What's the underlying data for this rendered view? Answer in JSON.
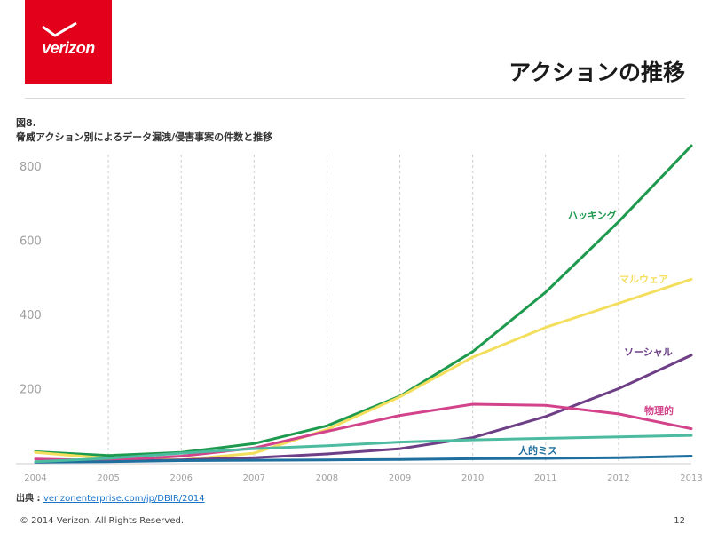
{
  "header": {
    "brand_colors": {
      "logo_bg": "#e2001a",
      "logo_text": "#ffffff"
    },
    "logo_text": "verizon",
    "slide_title": "アクションの推移"
  },
  "figure": {
    "number": "図8.",
    "title": "脅威アクション別によるデータ漏洩/侵害事案の件数と推移"
  },
  "chart_data": {
    "type": "line",
    "x": [
      2004,
      2005,
      2006,
      2007,
      2008,
      2009,
      2010,
      2011,
      2012,
      2013
    ],
    "x_tick_labels": [
      "2004",
      "2005",
      "2006",
      "2007",
      "2008",
      "2009",
      "2010",
      "2011",
      "2012",
      "2013"
    ],
    "y_tick_labels": [
      "200",
      "400",
      "600",
      "800"
    ],
    "y_ticks": [
      200,
      400,
      600,
      800
    ],
    "ylim": [
      0,
      860
    ],
    "xlim": [
      2004,
      2013
    ],
    "grid": "vertical dashed",
    "title": "",
    "xlabel": "",
    "ylabel": "",
    "series": [
      {
        "name": "ハッキング",
        "color": "#1e9a4e",
        "values": [
          30,
          20,
          28,
          52,
          100,
          180,
          300,
          460,
          650,
          855
        ]
      },
      {
        "name": "マルウェア",
        "color": "#f3df5d",
        "values": [
          28,
          12,
          8,
          26,
          90,
          178,
          285,
          365,
          430,
          495
        ]
      },
      {
        "name": "ソーシャル",
        "color": "#6e3e86",
        "values": [
          2,
          4,
          8,
          14,
          24,
          38,
          68,
          125,
          200,
          290
        ]
      },
      {
        "name": "物理的",
        "color": "#d3438c",
        "values": [
          10,
          6,
          18,
          40,
          85,
          128,
          158,
          155,
          132,
          92
        ]
      },
      {
        "name": "人的ミス",
        "color": "#1e6e9e",
        "values": [
          2,
          3,
          6,
          7,
          8,
          9,
          11,
          12,
          14,
          18
        ]
      },
      {
        "name": "",
        "color": "#4dbba0",
        "values": [
          3,
          12,
          26,
          38,
          46,
          56,
          62,
          66,
          70,
          74
        ]
      }
    ]
  },
  "footer": {
    "source_label": "出典 : ",
    "source_link": "verizonenterprise.com/jp/DBIR/2014",
    "copyright": "© 2014 Verizon. All Rights Reserved.",
    "page_number": "12"
  }
}
